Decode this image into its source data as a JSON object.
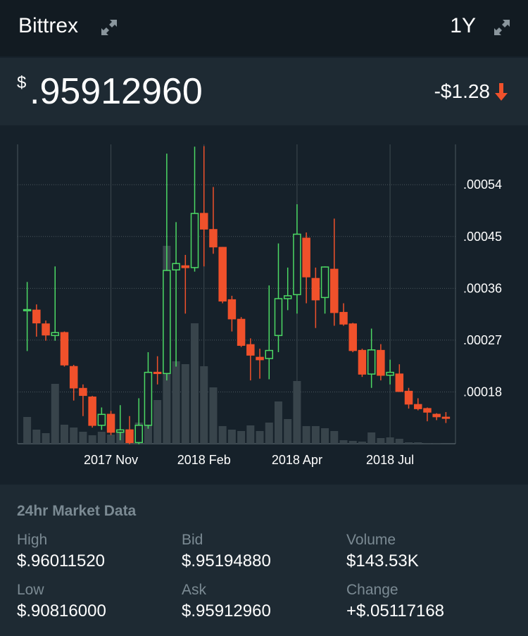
{
  "header": {
    "exchange": "Bittrex",
    "range": "1Y"
  },
  "price": {
    "currency": "$",
    "value": ".95912960",
    "change": "-$1.28"
  },
  "chart_data": {
    "type": "candlestick",
    "categories": [
      null,
      null,
      null,
      null,
      null,
      null,
      null,
      null,
      null,
      "2017 Nov",
      null,
      null,
      null,
      null,
      null,
      null,
      null,
      null,
      null,
      "2018 Feb",
      null,
      null,
      null,
      null,
      null,
      null,
      null,
      null,
      null,
      "2018 Apr",
      null,
      null,
      null,
      null,
      null,
      null,
      null,
      null,
      null,
      "2018 Jul",
      null,
      null,
      null,
      null,
      null,
      null
    ],
    "open": [
      0.000321,
      0.000322,
      0.000298,
      0.000278,
      0.000283,
      0.000224,
      0.000186,
      0.000171,
      0.000122,
      0.000141,
      0.00011,
      0.000114,
      9.2e-05,
      0.000122,
      0.000214,
      0.000212,
      0.000392,
      0.000399,
      0.000396,
      0.00049,
      0.000462,
      0.000431,
      0.00034,
      0.000306,
      0.000262,
      0.00024,
      0.000238,
      0.000278,
      0.000342,
      0.000349,
      0.000447,
      0.000377,
      0.000344,
      0.000393,
      0.000318,
      0.000298,
      0.000252,
      0.000211,
      0.000252,
      0.000209,
      0.000211,
      0.000181,
      0.000158,
      0.000151,
      0.000141,
      0.000136
    ],
    "high": [
      0.000371,
      0.000332,
      0.000304,
      0.000398,
      0.000285,
      0.000227,
      0.000193,
      0.000173,
      0.000153,
      0.000147,
      0.000157,
      0.000138,
      0.000169,
      0.000249,
      0.000242,
      0.000594,
      0.000475,
      0.000418,
      0.000606,
      0.000607,
      0.000536,
      0.000432,
      0.000347,
      0.00031,
      0.000273,
      0.000255,
      0.000365,
      0.000438,
      0.000396,
      0.000506,
      0.000457,
      0.000396,
      0.000398,
      0.000481,
      0.000334,
      0.0003,
      0.000255,
      0.00029,
      0.000263,
      0.000236,
      0.000228,
      0.000187,
      0.000169,
      0.000153,
      0.000143,
      0.000145
    ],
    "low": [
      0.000251,
      0.000276,
      0.000269,
      0.000269,
      0.000224,
      0.000165,
      0.000138,
      0.000118,
      0.000114,
      0.000105,
      9.6e-05,
      8.9e-05,
      8.9e-05,
      0.000116,
      0.000193,
      0.0002,
      0.000224,
      0.000316,
      0.000389,
      0.000398,
      0.00042,
      0.000334,
      0.000285,
      0.000258,
      0.0002,
      0.000203,
      0.000202,
      0.000249,
      0.000322,
      0.000316,
      0.000334,
      0.000291,
      0.000316,
      0.000295,
      0.000295,
      0.000249,
      0.000206,
      0.000187,
      0.0002,
      0.000193,
      0.00018,
      0.000151,
      0.000148,
      0.000129,
      0.000131,
      0.000126
    ],
    "close": [
      0.000323,
      0.0003,
      0.000279,
      0.000283,
      0.000227,
      0.000187,
      0.000174,
      0.000122,
      0.000141,
      0.00011,
      0.000114,
      9.2e-05,
      0.000122,
      0.000214,
      0.000212,
      0.000391,
      0.000403,
      0.000396,
      0.00049,
      0.000463,
      0.000432,
      0.000338,
      0.000307,
      0.000261,
      0.000244,
      0.000236,
      0.000252,
      0.000342,
      0.000347,
      0.000454,
      0.00038,
      0.00034,
      0.000397,
      0.000318,
      0.000298,
      0.000252,
      0.000211,
      0.000253,
      0.000209,
      0.000214,
      0.000181,
      0.000159,
      0.000151,
      0.000145,
      0.000137,
      0.000135
    ],
    "volume": [
      38,
      20,
      15,
      85,
      27,
      23,
      17,
      12,
      17,
      13,
      20,
      12,
      30,
      42,
      62,
      281,
      117,
      113,
      171,
      110,
      80,
      25,
      20,
      18,
      26,
      18,
      30,
      60,
      35,
      89,
      25,
      25,
      22,
      18,
      5,
      4,
      3,
      16,
      8,
      9,
      7,
      2,
      2,
      1,
      1,
      0
    ],
    "up_color": "#4cd964",
    "down_color": "#f0512b",
    "volume_color": "#38444b",
    "ylim": [
      9e-05,
      0.00061
    ],
    "yticks": [
      {
        "value": 0.00018,
        "label": ".00018"
      },
      {
        "value": 0.00027,
        "label": ".00027"
      },
      {
        "value": 0.00036,
        "label": ".00036"
      },
      {
        "value": 0.00045,
        "label": ".00045"
      },
      {
        "value": 0.00054,
        "label": ".00054"
      }
    ],
    "grid": true
  },
  "market_data": {
    "title": "24hr Market Data",
    "items": [
      {
        "label": "High",
        "value": "$.96011520"
      },
      {
        "label": "Bid",
        "value": "$.95194880"
      },
      {
        "label": "Volume",
        "value": "$143.53K"
      },
      {
        "label": "Low",
        "value": "$.90816000"
      },
      {
        "label": "Ask",
        "value": "$.95912960"
      },
      {
        "label": "Change",
        "value": "+$.05117168"
      }
    ]
  }
}
